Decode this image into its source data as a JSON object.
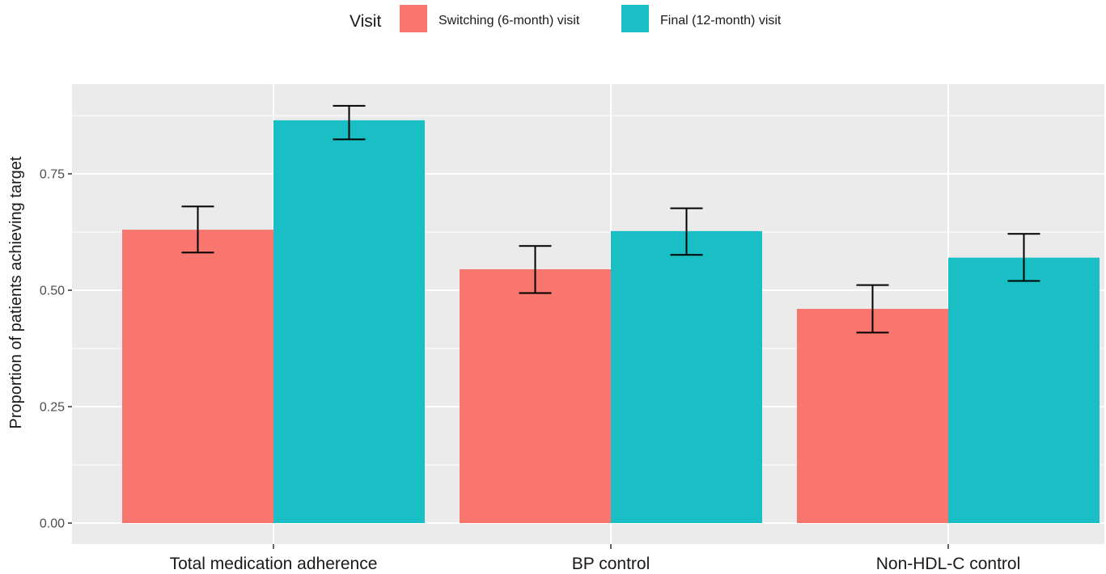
{
  "chart_data": {
    "type": "bar",
    "categories": [
      "Total medication adherence",
      "BP control",
      "Non-HDL-C control"
    ],
    "series": [
      {
        "name": "Switching (6-month) visit",
        "color": "#F8766D",
        "values": [
          0.63,
          0.545,
          0.46
        ],
        "error_low": [
          0.581,
          0.494,
          0.409
        ],
        "error_high": [
          0.68,
          0.595,
          0.511
        ]
      },
      {
        "name": "Final (12-month) visit",
        "color": "#1ABFC5",
        "values": [
          0.865,
          0.627,
          0.57
        ],
        "error_low": [
          0.824,
          0.576,
          0.52
        ],
        "error_high": [
          0.896,
          0.676,
          0.621
        ]
      }
    ],
    "ylabel": "Proportion of patients achieving target",
    "xlabel": "",
    "ylim": [
      0,
      0.93
    ],
    "yticks": [
      "0.00",
      "0.25",
      "0.50",
      "0.75"
    ],
    "legend": {
      "title": "Visit",
      "position": "top"
    },
    "grid": true,
    "panel_color": "#EBEBEB"
  }
}
